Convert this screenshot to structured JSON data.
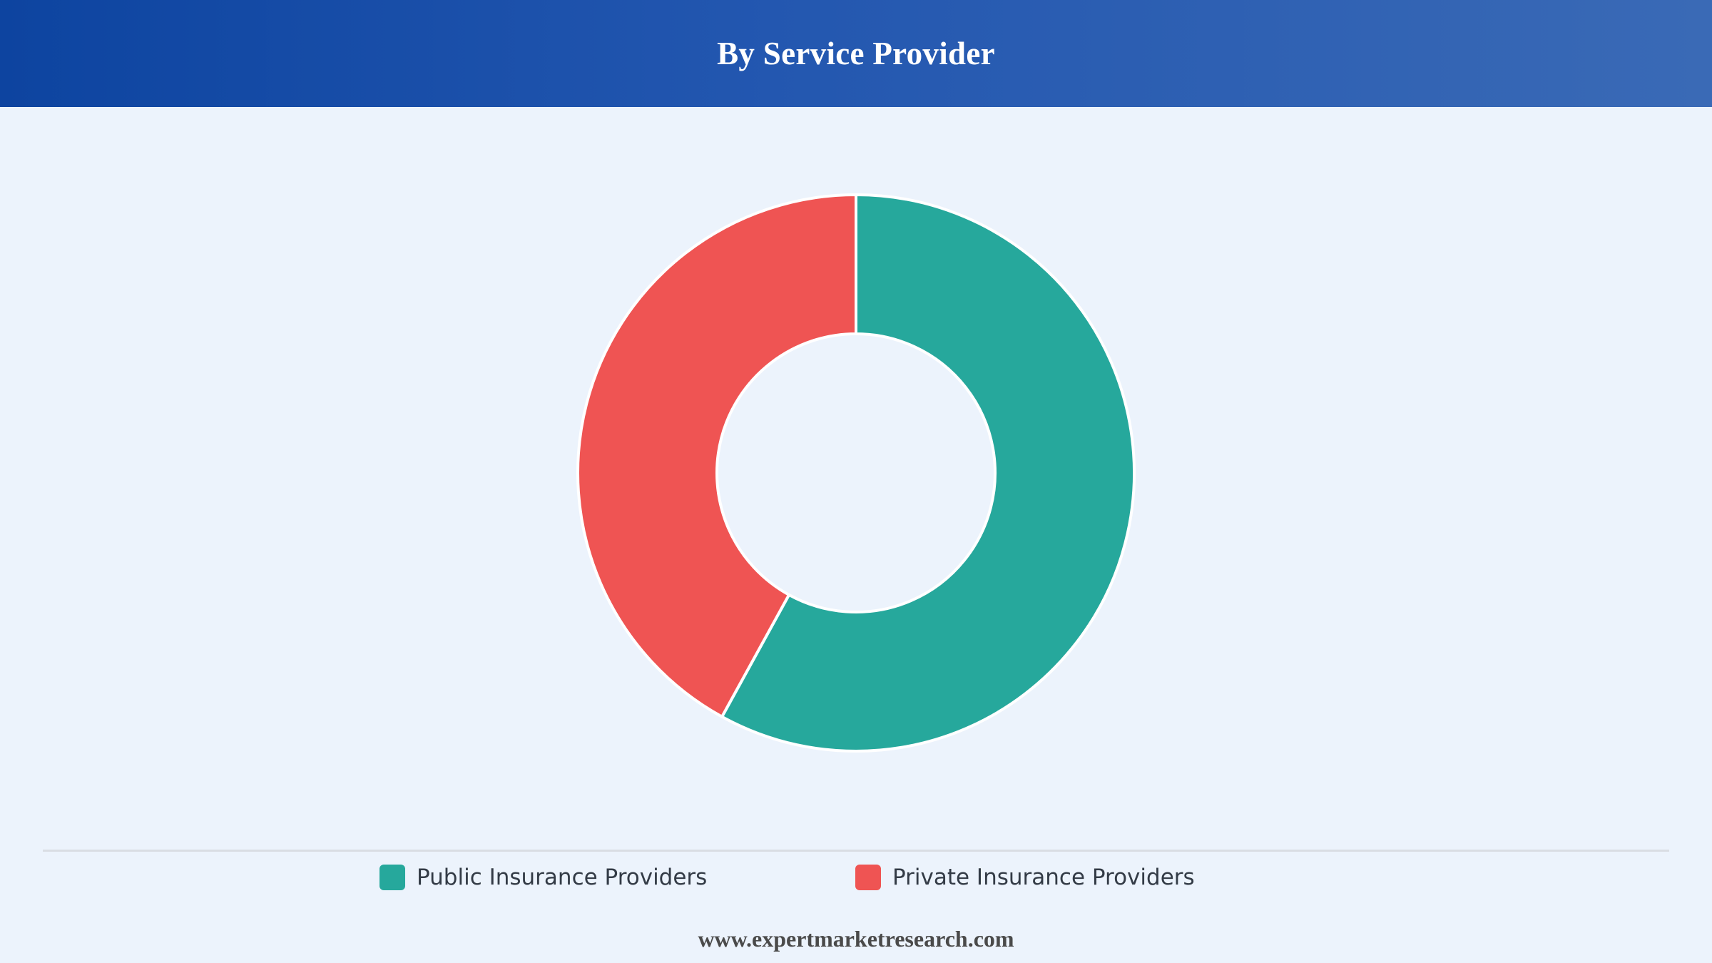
{
  "header": {
    "title": "By Service Provider"
  },
  "chart_data": {
    "type": "pie",
    "variant": "donut",
    "title": "By Service Provider",
    "categories": [
      "Public Insurance Providers",
      "Private Insurance Providers"
    ],
    "values": [
      58,
      42
    ],
    "colors": [
      "#26a89c",
      "#ef5453"
    ],
    "legend_position": "bottom",
    "start_angle": "top",
    "direction": "clockwise"
  },
  "legend": {
    "items": [
      {
        "label": "Public Insurance Providers",
        "color": "#26a89c"
      },
      {
        "label": "Private Insurance Providers",
        "color": "#ef5453"
      }
    ]
  },
  "footer": {
    "source": "www.expertmarketresearch.com"
  }
}
